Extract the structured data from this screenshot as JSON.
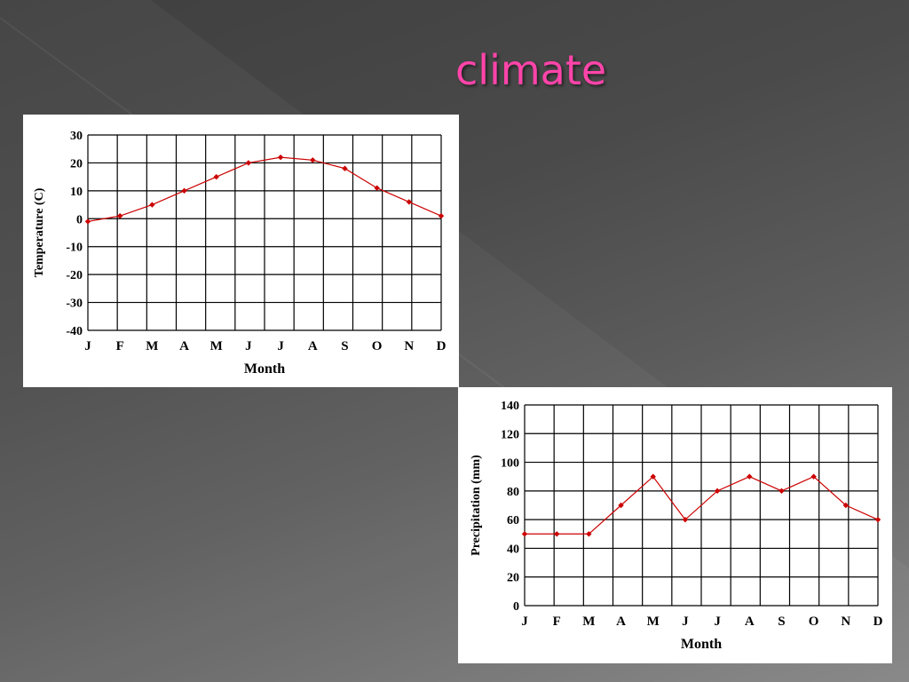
{
  "slide": {
    "title": "climate"
  },
  "chart_data": [
    {
      "type": "line",
      "xlabel": "Month",
      "ylabel": "Temperature (C)",
      "categories": [
        "J",
        "F",
        "M",
        "A",
        "M",
        "J",
        "J",
        "A",
        "S",
        "O",
        "N",
        "D"
      ],
      "series": [
        {
          "values": [
            -1,
            1,
            5,
            10,
            15,
            20,
            22,
            21,
            18,
            11,
            6,
            1
          ]
        }
      ],
      "ylim": [
        -40,
        30
      ],
      "yticks": [
        30,
        20,
        10,
        0,
        -10,
        -20,
        -30,
        -40
      ],
      "grid": true,
      "color": "#cc0000"
    },
    {
      "type": "line",
      "xlabel": "Month",
      "ylabel": "Precipitation (mm)",
      "categories": [
        "J",
        "F",
        "M",
        "A",
        "M",
        "J",
        "J",
        "A",
        "S",
        "O",
        "N",
        "D"
      ],
      "series": [
        {
          "values": [
            50,
            50,
            50,
            70,
            90,
            60,
            80,
            90,
            80,
            90,
            70,
            60
          ]
        }
      ],
      "ylim": [
        0,
        140
      ],
      "yticks": [
        140,
        120,
        100,
        80,
        60,
        40,
        20,
        0
      ],
      "grid": true,
      "color": "#cc0000"
    }
  ]
}
